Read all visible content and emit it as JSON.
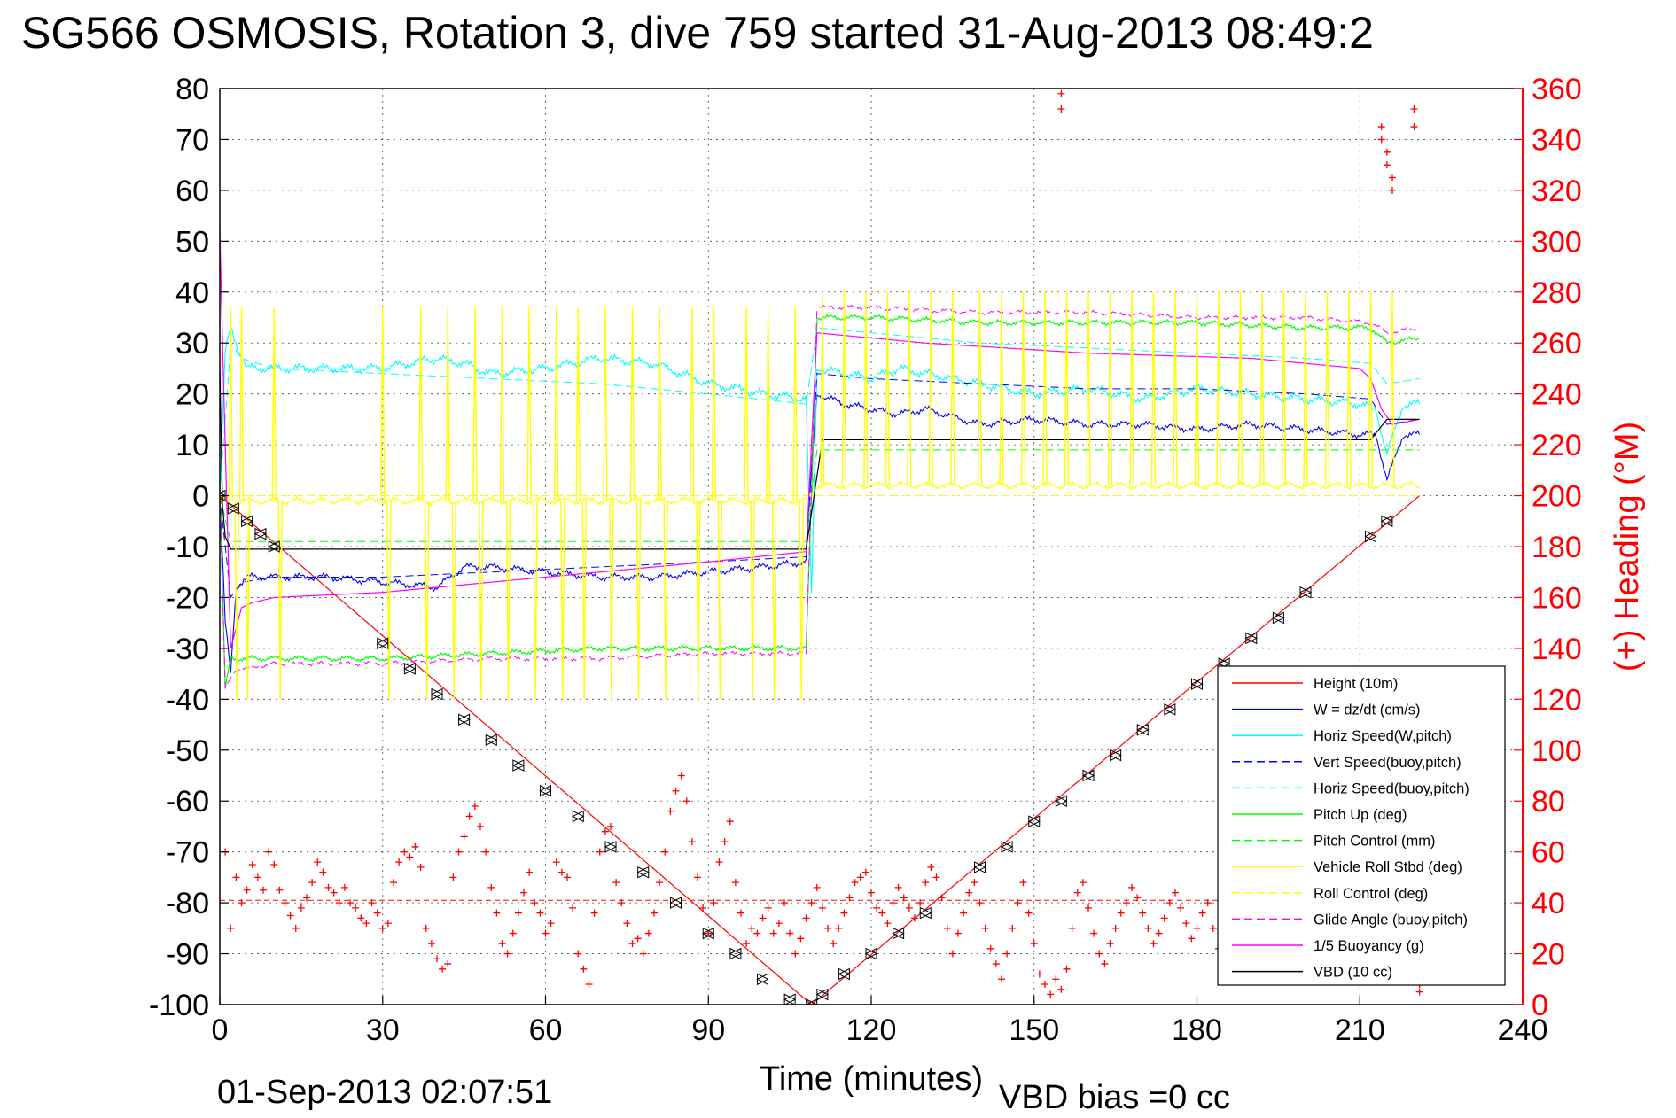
{
  "footer": {
    "end_time": "01-Sep-2013 02:07:51",
    "vbd_bias": "VBD bias =0 cc"
  },
  "colors": {
    "height": "#ff0000",
    "w": "#0000ff",
    "horiz_w": "#00ffff",
    "vert_buoy": "#0000ff",
    "horiz_buoy": "#00ffff",
    "pitch": "#00ff00",
    "pitch_ctrl": "#00ff00",
    "roll": "#ffff00",
    "roll_ctrl": "#ffff00",
    "glide": "#ff00ff",
    "buoyancy": "#ff00ff",
    "vbd": "#000000",
    "heading": "#ff0000"
  },
  "chart_data": {
    "type": "line",
    "title": "SG566 OSMOSIS, Rotation 3, dive 759 started 31-Aug-2013 08:49:2",
    "xlabel": "Time (minutes)",
    "ylabel": "",
    "y2label": "(+) Heading (°M)",
    "xlim": [
      0,
      240
    ],
    "ylim": [
      -100,
      80
    ],
    "y2lim": [
      0,
      360
    ],
    "xticks": [
      "0",
      "30",
      "60",
      "90",
      "120",
      "150",
      "180",
      "210",
      "240"
    ],
    "yticks": [
      "80",
      "70",
      "60",
      "50",
      "40",
      "30",
      "20",
      "10",
      "0",
      "-10",
      "-20",
      "-30",
      "-40",
      "-50",
      "-60",
      "-70",
      "-80",
      "-90",
      "-100"
    ],
    "y2ticks": [
      "360",
      "340",
      "320",
      "300",
      "280",
      "260",
      "240",
      "220",
      "200",
      "180",
      "160",
      "140",
      "120",
      "100",
      "80",
      "60",
      "40",
      "20",
      "0"
    ],
    "grid": true,
    "legend_position": "bottom-right",
    "legend": [
      {
        "label": "Height (10m)",
        "color": "#ff0000",
        "dash": "solid"
      },
      {
        "label": "W = dz/dt (cm/s)",
        "color": "#0000ff",
        "dash": "solid"
      },
      {
        "label": "Horiz Speed(W,pitch)",
        "color": "#00ffff",
        "dash": "solid"
      },
      {
        "label": "Vert Speed(buoy,pitch)",
        "color": "#0000ff",
        "dash": "dashed"
      },
      {
        "label": "Horiz Speed(buoy,pitch)",
        "color": "#00ffff",
        "dash": "dashed"
      },
      {
        "label": "Pitch Up (deg)",
        "color": "#00ff00",
        "dash": "solid"
      },
      {
        "label": "Pitch Control (mm)",
        "color": "#00ff00",
        "dash": "dashed"
      },
      {
        "label": "Vehicle Roll Stbd (deg)",
        "color": "#ffff00",
        "dash": "solid"
      },
      {
        "label": "Roll Control (deg)",
        "color": "#ffff00",
        "dash": "dashed"
      },
      {
        "label": "Glide Angle (buoy,pitch)",
        "color": "#ff00ff",
        "dash": "dashed"
      },
      {
        "label": "1/5 Buoyancy (g)",
        "color": "#ff00ff",
        "dash": "solid"
      },
      {
        "label": "VBD (10 cc)",
        "color": "#000000",
        "dash": "solid"
      }
    ],
    "series": [
      {
        "key": "height",
        "color": "#ff0000",
        "dash": "solid",
        "width": 1.2,
        "x": [
          0,
          109,
          221
        ],
        "y": [
          0,
          -100,
          0
        ]
      },
      {
        "key": "height_samples",
        "color": "#000000",
        "marker": "bowtie",
        "x": [
          0,
          2.5,
          5,
          7.5,
          10,
          30,
          35,
          40,
          45,
          50,
          55,
          60,
          66,
          72,
          78,
          84,
          90,
          95,
          100,
          105,
          109,
          111,
          115,
          120,
          125,
          130,
          140,
          145,
          150,
          155,
          160,
          165,
          170,
          175,
          180,
          185,
          190,
          195,
          200,
          212,
          215
        ],
        "y": [
          0,
          -2.5,
          -5,
          -7.5,
          -10,
          -29,
          -34,
          -39,
          -44,
          -48,
          -53,
          -58,
          -63,
          -69,
          -74,
          -80,
          -86,
          -90,
          -95,
          -99,
          -100,
          -98,
          -94,
          -90,
          -86,
          -82,
          -73,
          -69,
          -64,
          -60,
          -55,
          -51,
          -46,
          -42,
          -37,
          -33,
          -28,
          -24,
          -19,
          -8,
          -5
        ]
      },
      {
        "key": "w",
        "color": "#0000ff",
        "dash": "solid",
        "width": 1.1,
        "noise": 0.8,
        "x": [
          0,
          1,
          2,
          3,
          5,
          10,
          20,
          30,
          40,
          45,
          50,
          60,
          70,
          80,
          90,
          100,
          108,
          109,
          110,
          115,
          120,
          125,
          130,
          140,
          150,
          160,
          170,
          180,
          190,
          200,
          210,
          213,
          215,
          218,
          221
        ],
        "y": [
          0,
          -25,
          -35,
          -18,
          -16,
          -16,
          -16,
          -17,
          -18,
          -14,
          -14,
          -15,
          -16,
          -16,
          -15,
          -14,
          -13,
          5,
          20,
          18,
          17,
          16,
          17,
          14,
          15,
          14,
          14,
          13,
          14,
          13,
          12,
          12,
          3,
          12,
          12
        ]
      },
      {
        "key": "horiz_w",
        "color": "#00ffff",
        "dash": "solid",
        "width": 1.1,
        "noise": 1.0,
        "x": [
          0,
          1,
          2,
          3,
          5,
          10,
          20,
          30,
          40,
          45,
          50,
          60,
          70,
          80,
          90,
          100,
          108,
          109,
          110,
          115,
          120,
          125,
          130,
          140,
          150,
          160,
          170,
          180,
          190,
          200,
          210,
          213,
          215,
          218,
          221
        ],
        "y": [
          0,
          28,
          33,
          30,
          25,
          25,
          25,
          25,
          27,
          26,
          24,
          25,
          27,
          26,
          22,
          20,
          19,
          -20,
          25,
          24,
          23,
          25,
          24,
          22,
          20,
          21,
          19,
          21,
          20,
          19,
          18,
          17,
          8,
          18,
          18
        ]
      },
      {
        "key": "vert_buoy",
        "color": "#0000ff",
        "dash": "dashed",
        "width": 1.0,
        "x": [
          0,
          2,
          4,
          10,
          30,
          50,
          70,
          90,
          108,
          110,
          120,
          140,
          160,
          180,
          200,
          212,
          215,
          221
        ],
        "y": [
          0,
          -20,
          -17,
          -16,
          -16,
          -15,
          -14,
          -13,
          -12,
          24,
          23,
          22,
          21,
          21,
          20,
          19,
          14,
          15
        ]
      },
      {
        "key": "horiz_buoy",
        "color": "#00ffff",
        "dash": "dashed",
        "width": 1.0,
        "x": [
          0,
          2,
          4,
          10,
          30,
          50,
          70,
          90,
          108,
          110,
          120,
          140,
          160,
          180,
          200,
          212,
          215,
          221
        ],
        "y": [
          0,
          30,
          27,
          25,
          24,
          23,
          22,
          20,
          18,
          33,
          32,
          30,
          29,
          28,
          27,
          26,
          22,
          23
        ]
      },
      {
        "key": "pitch",
        "color": "#00ff00",
        "dash": "solid",
        "width": 1.2,
        "noise": 0.6,
        "x": [
          0,
          1,
          2,
          3,
          5,
          10,
          30,
          50,
          70,
          90,
          108,
          109,
          110,
          120,
          140,
          160,
          180,
          200,
          212,
          215,
          221
        ],
        "y": [
          0,
          -38,
          -32,
          -32,
          -32,
          -32,
          -32,
          -31,
          -30,
          -30,
          -30,
          0,
          35,
          35,
          34,
          34,
          34,
          33,
          33,
          30,
          31
        ]
      },
      {
        "key": "pitch_ctrl",
        "color": "#00ff00",
        "dash": "dashed",
        "width": 1.0,
        "x": [
          0,
          2,
          4,
          108,
          110,
          221
        ],
        "y": [
          0,
          -9,
          -9,
          -9,
          9,
          9
        ]
      },
      {
        "key": "roll",
        "color": "#ffff00",
        "dash": "solid",
        "width": 1.1,
        "noise": 0.8,
        "x": [
          0,
          2,
          4,
          10,
          50,
          90,
          108,
          110,
          150,
          221
        ],
        "y": [
          0,
          -2,
          -1,
          -1,
          -1,
          -1,
          -1,
          2,
          2,
          2
        ]
      },
      {
        "key": "roll_ctrl",
        "color": "#ffff00",
        "dash": "dashed",
        "width": 1.0,
        "x": [
          0,
          2,
          108,
          110,
          221
        ],
        "y": [
          0,
          0,
          0,
          0,
          0
        ]
      },
      {
        "key": "glide",
        "color": "#ff00ff",
        "dash": "dashed",
        "width": 1.0,
        "noise": 0.5,
        "x": [
          0,
          1,
          3,
          5,
          10,
          30,
          50,
          70,
          90,
          108,
          110,
          120,
          140,
          160,
          180,
          200,
          212,
          215,
          221
        ],
        "y": [
          0,
          -38,
          -34,
          -34,
          -33,
          -33,
          -32,
          -32,
          -31,
          -31,
          37,
          37,
          36,
          36,
          35,
          35,
          34,
          32,
          33
        ]
      },
      {
        "key": "buoyancy",
        "color": "#ff00ff",
        "dash": "solid",
        "width": 1.2,
        "x": [
          0,
          0.5,
          2,
          4,
          6,
          10,
          30,
          60,
          90,
          108,
          110,
          130,
          160,
          190,
          210,
          212,
          214,
          216,
          221
        ],
        "y": [
          52,
          30,
          -30,
          -22,
          -21,
          -20,
          -19,
          -16,
          -13,
          -11,
          32,
          30,
          28,
          27,
          25,
          23,
          17,
          14,
          15
        ]
      },
      {
        "key": "vbd",
        "color": "#000000",
        "dash": "solid",
        "width": 1.2,
        "x": [
          0,
          0.5,
          1,
          2,
          4,
          108,
          111,
          212,
          215,
          221
        ],
        "y": [
          25,
          -2,
          -8,
          -10.5,
          -10.5,
          -10.5,
          11,
          11,
          15,
          15
        ]
      }
    ],
    "roll_spikes": {
      "dive": [
        2,
        4,
        10,
        30,
        37,
        42,
        47,
        52,
        57,
        62,
        66,
        71,
        76,
        81,
        87,
        91,
        97,
        101,
        106
      ],
      "climb": [
        111,
        115,
        119,
        123,
        127,
        131,
        135,
        140,
        144,
        148,
        152,
        156,
        160,
        164,
        168,
        172,
        176,
        180,
        184,
        188,
        192,
        196,
        200,
        204,
        208,
        212,
        216
      ]
    },
    "heading_scatter": {
      "axis": "y2",
      "color": "#ff0000",
      "marker": "plus",
      "x": [
        1,
        2,
        3,
        4,
        5,
        6,
        7,
        8,
        9,
        10,
        11,
        12,
        13,
        14,
        15,
        16,
        17,
        18,
        19,
        20,
        21,
        22,
        23,
        24,
        25,
        26,
        27,
        28,
        29,
        30,
        31,
        32,
        33,
        34,
        35,
        36,
        37,
        38,
        39,
        40,
        41,
        42,
        43,
        44,
        45,
        46,
        47,
        48,
        49,
        50,
        51,
        52,
        53,
        54,
        55,
        56,
        57,
        58,
        59,
        60,
        61,
        62,
        63,
        64,
        65,
        66,
        67,
        68,
        69,
        70,
        71,
        72,
        73,
        74,
        75,
        76,
        77,
        78,
        79,
        80,
        81,
        82,
        83,
        84,
        85,
        86,
        87,
        88,
        89,
        90,
        91,
        92,
        93,
        94,
        95,
        96,
        97,
        98,
        99,
        100,
        101,
        102,
        103,
        104,
        105,
        106,
        107,
        108,
        109,
        110,
        111,
        112,
        113,
        114,
        115,
        116,
        117,
        118,
        119,
        120,
        121,
        122,
        123,
        124,
        125,
        126,
        127,
        128,
        129,
        130,
        131,
        132,
        133,
        134,
        135,
        136,
        137,
        138,
        139,
        140,
        141,
        142,
        143,
        144,
        145,
        146,
        147,
        148,
        149,
        150,
        151,
        152,
        153,
        154,
        155,
        156,
        157,
        158,
        159,
        160,
        161,
        162,
        163,
        164,
        165,
        166,
        167,
        168,
        169,
        170,
        171,
        172,
        173,
        174,
        175,
        176,
        177,
        178,
        179,
        180,
        181,
        182,
        183,
        184,
        185,
        186,
        187,
        188,
        189,
        190,
        191,
        192,
        193,
        194,
        195,
        196,
        197,
        198,
        199,
        200,
        201,
        202,
        203,
        204,
        205,
        206,
        207,
        208,
        209,
        210,
        211,
        212,
        213,
        214,
        215,
        216,
        217,
        218,
        219,
        220,
        221,
        155,
        155,
        214,
        214,
        215,
        215,
        216,
        216,
        220,
        220,
        221
      ],
      "y": [
        60,
        30,
        50,
        40,
        45,
        55,
        50,
        45,
        60,
        55,
        45,
        40,
        35,
        30,
        38,
        42,
        48,
        56,
        52,
        46,
        44,
        40,
        46,
        40,
        38,
        34,
        32,
        40,
        36,
        30,
        32,
        48,
        56,
        60,
        58,
        62,
        54,
        30,
        24,
        18,
        14,
        16,
        50,
        60,
        66,
        74,
        78,
        70,
        60,
        46,
        36,
        24,
        20,
        28,
        36,
        44,
        52,
        40,
        36,
        28,
        32,
        56,
        52,
        50,
        38,
        20,
        14,
        8,
        36,
        60,
        68,
        70,
        48,
        40,
        32,
        24,
        26,
        20,
        28,
        36,
        48,
        60,
        76,
        84,
        90,
        80,
        64,
        50,
        38,
        28,
        40,
        56,
        64,
        72,
        48,
        36,
        24,
        30,
        28,
        34,
        38,
        28,
        32,
        40,
        28,
        20,
        26,
        34,
        40,
        46,
        38,
        30,
        24,
        30,
        36,
        42,
        48,
        50,
        52,
        44,
        38,
        36,
        32,
        40,
        46,
        42,
        38,
        34,
        40,
        48,
        54,
        50,
        42,
        30,
        20,
        28,
        36,
        44,
        48,
        40,
        30,
        22,
        16,
        10,
        20,
        30,
        40,
        48,
        36,
        24,
        12,
        8,
        4,
        10,
        6,
        14,
        30,
        44,
        48,
        38,
        28,
        20,
        16,
        24,
        30,
        36,
        40,
        46,
        42,
        36,
        30,
        24,
        28,
        34,
        40,
        44,
        38,
        32,
        26,
        30,
        36,
        40,
        30,
        22,
        26,
        32,
        38,
        44,
        40,
        34,
        28,
        26,
        30,
        36,
        42,
        48,
        44,
        38,
        32,
        28,
        24,
        30,
        36,
        42,
        46,
        40,
        34,
        28,
        22,
        18,
        26,
        34,
        40,
        44,
        38,
        32,
        26,
        20,
        14,
        10,
        8,
        358,
        352,
        345,
        340,
        335,
        330,
        325,
        320,
        352,
        345,
        5
      ]
    }
  }
}
